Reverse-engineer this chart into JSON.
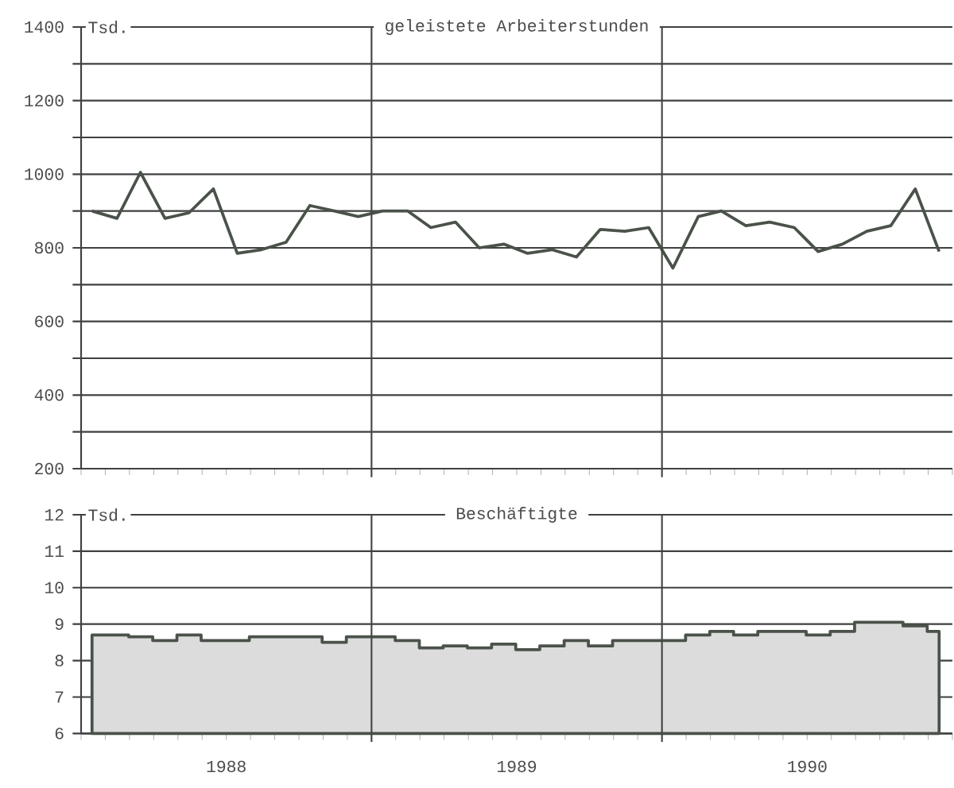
{
  "chart_data": [
    {
      "type": "line",
      "title": "geleistete Arbeiterstunden",
      "ylabel": "Tsd.",
      "color": "#4a524a",
      "x": [
        "1988-01-15",
        "1988-02-15",
        "1988-03-15",
        "1988-04-15",
        "1988-05-15",
        "1988-06-15",
        "1988-07-15",
        "1988-08-15",
        "1988-09-15",
        "1988-10-15",
        "1988-11-15",
        "1988-12-15",
        "1989-01-15",
        "1989-02-15",
        "1989-03-15",
        "1989-04-15",
        "1989-05-15",
        "1989-06-15",
        "1989-07-15",
        "1989-08-15",
        "1989-09-15",
        "1989-10-15",
        "1989-11-15",
        "1989-12-15",
        "1990-01-15",
        "1990-02-15",
        "1990-03-15",
        "1990-04-15",
        "1990-05-15",
        "1990-06-15",
        "1990-07-15",
        "1990-08-15",
        "1990-09-15",
        "1990-10-15",
        "1990-11-15",
        "1990-12-15"
      ],
      "values": [
        900,
        880,
        1005,
        880,
        895,
        960,
        785,
        795,
        815,
        915,
        900,
        885,
        900,
        900,
        855,
        870,
        800,
        810,
        785,
        795,
        775,
        850,
        845,
        855,
        745,
        885,
        900,
        860,
        870,
        855,
        790,
        810,
        845,
        860,
        960,
        790
      ],
      "xlim": [
        "1988-01-01",
        "1991-01-01"
      ],
      "ylim": [
        200,
        1400
      ],
      "yticks": [
        200,
        {
          "value": 300,
          "label": null
        },
        400,
        {
          "value": 500,
          "label": null
        },
        600,
        {
          "value": 700,
          "label": null
        },
        800,
        {
          "value": 900,
          "label": null
        },
        1000,
        {
          "value": 1100,
          "label": null
        },
        1200,
        {
          "value": 1300,
          "label": null
        },
        1400
      ],
      "grid": "y",
      "tick_labels": "y",
      "ref_lines": [
        {
          "axis": "x",
          "value": "1989-01-01",
          "color": "#404840"
        },
        {
          "axis": "x",
          "value": "1990-01-01",
          "color": "#404840"
        }
      ]
    },
    {
      "type": "area",
      "title": "Beschäftigte",
      "ylabel": "Tsd.",
      "color": "#4a524a",
      "x": [
        "1988-01-15",
        "1988-02-15",
        "1988-03-15",
        "1988-04-15",
        "1988-05-15",
        "1988-06-15",
        "1988-07-15",
        "1988-08-15",
        "1988-09-15",
        "1988-10-15",
        "1988-11-15",
        "1988-12-15",
        "1989-01-15",
        "1989-02-15",
        "1989-03-15",
        "1989-04-15",
        "1989-05-15",
        "1989-06-15",
        "1989-07-15",
        "1989-08-15",
        "1989-09-15",
        "1989-10-15",
        "1989-11-15",
        "1989-12-15",
        "1990-01-15",
        "1990-02-15",
        "1990-03-15",
        "1990-04-15",
        "1990-05-15",
        "1990-06-15",
        "1990-07-15",
        "1990-08-15",
        "1990-09-15",
        "1990-10-15",
        "1990-11-15",
        "1990-12-15"
      ],
      "values": [
        8.7,
        8.7,
        8.65,
        8.55,
        8.7,
        8.55,
        8.55,
        8.65,
        8.65,
        8.65,
        8.5,
        8.65,
        8.65,
        8.55,
        8.35,
        8.4,
        8.35,
        8.45,
        8.3,
        8.4,
        8.55,
        8.4,
        8.55,
        8.55,
        8.55,
        8.7,
        8.8,
        8.7,
        8.8,
        8.8,
        8.7,
        8.8,
        9.05,
        9.05,
        8.95,
        8.8
      ],
      "xlim": [
        "1988-01-01",
        "1991-01-01"
      ],
      "xticks": [
        {
          "value": "1988-07-01",
          "label": "1988"
        },
        {
          "value": "1989-07-01",
          "label": "1989"
        },
        {
          "value": "1990-07-01",
          "label": "1990"
        }
      ],
      "ylim": [
        6,
        12
      ],
      "yticks": [
        6,
        7,
        8,
        9,
        10,
        11,
        12
      ],
      "grid": "y",
      "ref_lines": [
        {
          "axis": "x",
          "value": "1989-01-01",
          "color": "#404840"
        },
        {
          "axis": "x",
          "value": "1990-01-01",
          "color": "#404840"
        }
      ]
    }
  ]
}
